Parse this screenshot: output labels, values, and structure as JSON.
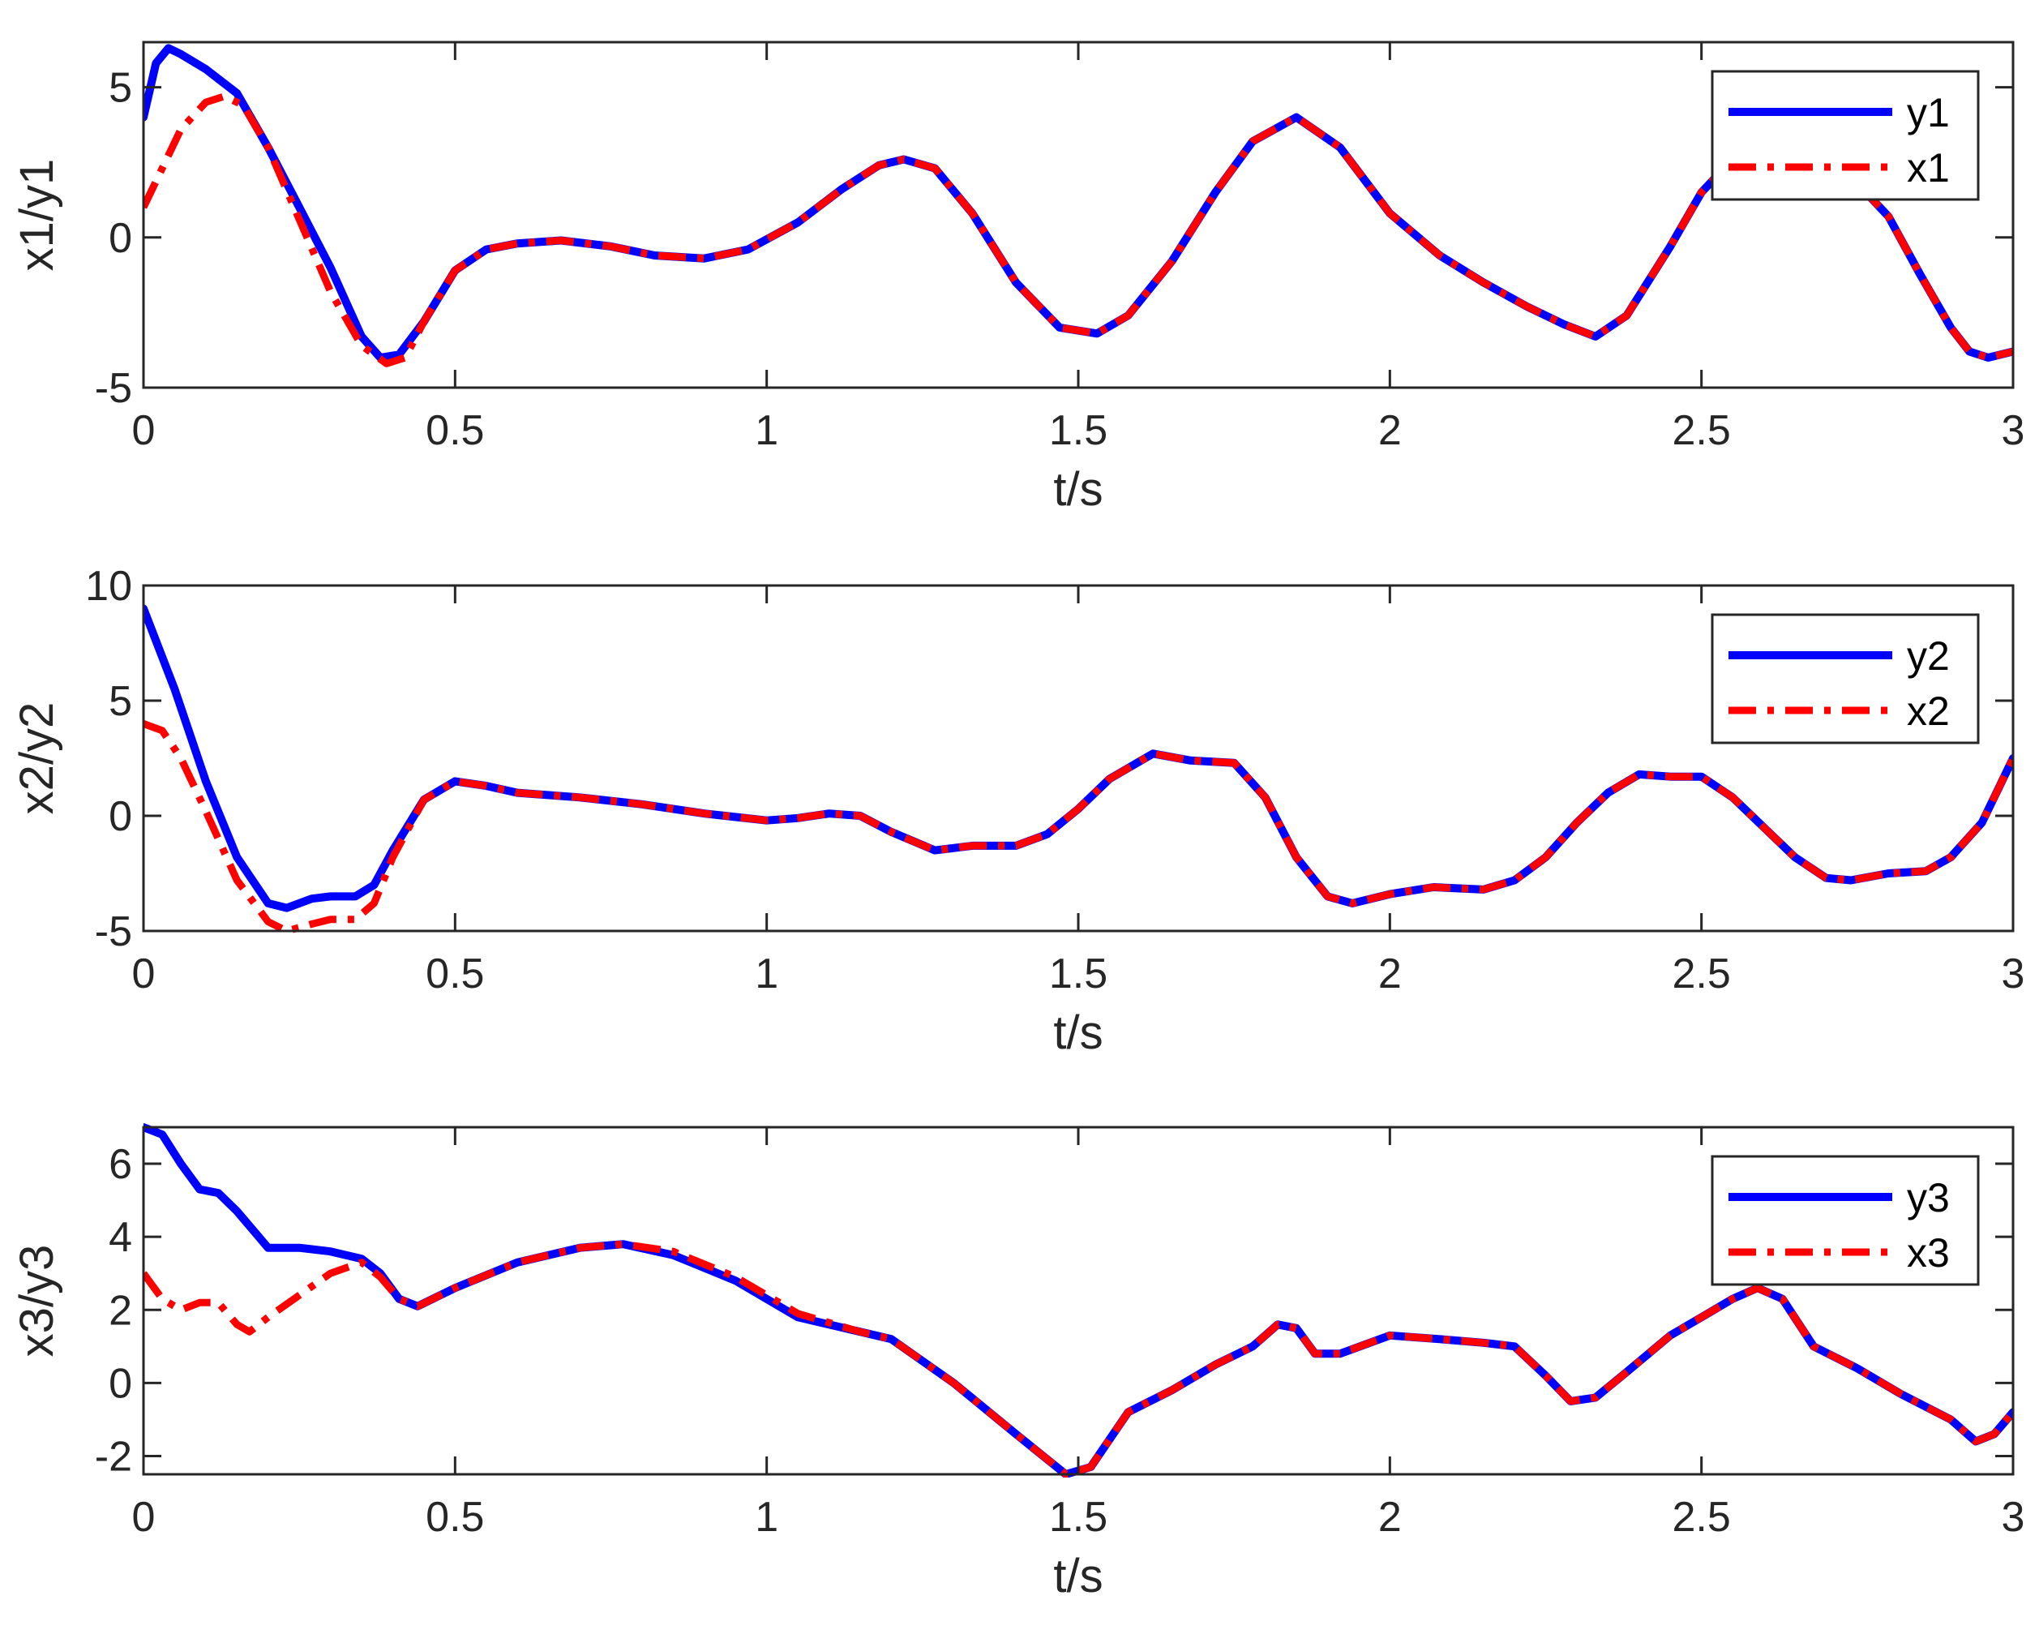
{
  "chart_data": [
    {
      "type": "line",
      "xlabel": "t/s",
      "ylabel": "x1/y1",
      "xlim": [
        0,
        3
      ],
      "ylim": [
        -5,
        6.5
      ],
      "xticks": [
        0,
        0.5,
        1,
        1.5,
        2,
        2.5,
        3
      ],
      "xtick_labels": [
        "0",
        "0.5",
        "1",
        "1.5",
        "2",
        "2.5",
        "3"
      ],
      "yticks": [
        -5,
        0,
        5
      ],
      "ytick_labels": [
        "-5",
        "0",
        "5"
      ],
      "grid": false,
      "legend": "top-right",
      "series": [
        {
          "name": "y1",
          "color": "#0000ff",
          "style": "solid",
          "x": [
            0,
            0.02,
            0.04,
            0.06,
            0.1,
            0.15,
            0.2,
            0.25,
            0.3,
            0.35,
            0.38,
            0.41,
            0.45,
            0.5,
            0.55,
            0.6,
            0.67,
            0.75,
            0.82,
            0.9,
            0.97,
            1.05,
            1.12,
            1.18,
            1.22,
            1.27,
            1.33,
            1.4,
            1.47,
            1.53,
            1.58,
            1.65,
            1.72,
            1.78,
            1.85,
            1.92,
            2.0,
            2.08,
            2.15,
            2.22,
            2.28,
            2.33,
            2.38,
            2.45,
            2.5,
            2.55,
            2.6,
            2.65,
            2.7,
            2.75,
            2.8,
            2.85,
            2.9,
            2.93,
            2.96,
            3.0
          ],
          "y": [
            4.0,
            5.8,
            6.3,
            6.1,
            5.6,
            4.8,
            3.0,
            1.0,
            -1.0,
            -3.3,
            -4.0,
            -3.9,
            -2.8,
            -1.1,
            -0.4,
            -0.2,
            -0.1,
            -0.3,
            -0.6,
            -0.7,
            -0.4,
            0.5,
            1.6,
            2.4,
            2.6,
            2.3,
            0.8,
            -1.5,
            -3.0,
            -3.2,
            -2.6,
            -0.8,
            1.5,
            3.2,
            4.0,
            3.0,
            0.8,
            -0.6,
            -1.5,
            -2.3,
            -2.9,
            -3.3,
            -2.6,
            -0.3,
            1.5,
            2.6,
            3.0,
            2.9,
            2.4,
            1.8,
            0.7,
            -1.2,
            -3.0,
            -3.8,
            -4.0,
            -3.8
          ]
        },
        {
          "name": "x1",
          "color": "#ff0000",
          "style": "dash-dot",
          "x": [
            0,
            0.03,
            0.06,
            0.1,
            0.13,
            0.16,
            0.2,
            0.25,
            0.3,
            0.35,
            0.39,
            0.42,
            0.45,
            0.5,
            0.55,
            0.6,
            0.67,
            0.75,
            0.82,
            0.9,
            0.97,
            1.05,
            1.12,
            1.18,
            1.22,
            1.27,
            1.33,
            1.4,
            1.47,
            1.53,
            1.58,
            1.65,
            1.72,
            1.78,
            1.85,
            1.92,
            2.0,
            2.08,
            2.15,
            2.22,
            2.28,
            2.33,
            2.38,
            2.45,
            2.5,
            2.55,
            2.6,
            2.65,
            2.7,
            2.75,
            2.8,
            2.85,
            2.9,
            2.93,
            2.96,
            3.0
          ],
          "y": [
            1.0,
            2.3,
            3.6,
            4.5,
            4.7,
            4.4,
            3.0,
            0.6,
            -1.8,
            -3.6,
            -4.2,
            -4.0,
            -2.8,
            -1.1,
            -0.4,
            -0.2,
            -0.1,
            -0.3,
            -0.6,
            -0.7,
            -0.4,
            0.5,
            1.6,
            2.4,
            2.6,
            2.3,
            0.8,
            -1.5,
            -3.0,
            -3.2,
            -2.6,
            -0.8,
            1.5,
            3.2,
            4.0,
            3.0,
            0.8,
            -0.6,
            -1.5,
            -2.3,
            -2.9,
            -3.3,
            -2.6,
            -0.3,
            1.5,
            2.6,
            3.0,
            2.9,
            2.4,
            1.8,
            0.7,
            -1.2,
            -3.0,
            -3.8,
            -4.0,
            -3.8
          ]
        }
      ]
    },
    {
      "type": "line",
      "xlabel": "t/s",
      "ylabel": "x2/y2",
      "xlim": [
        0,
        3
      ],
      "ylim": [
        -5,
        10
      ],
      "xticks": [
        0,
        0.5,
        1,
        1.5,
        2,
        2.5,
        3
      ],
      "xtick_labels": [
        "0",
        "0.5",
        "1",
        "1.5",
        "2",
        "2.5",
        "3"
      ],
      "yticks": [
        -5,
        0,
        5,
        10
      ],
      "ytick_labels": [
        "-5",
        "0",
        "5",
        "10"
      ],
      "grid": false,
      "legend": "top-right",
      "series": [
        {
          "name": "y2",
          "color": "#0000ff",
          "style": "solid",
          "x": [
            0,
            0.05,
            0.1,
            0.15,
            0.2,
            0.23,
            0.27,
            0.3,
            0.34,
            0.37,
            0.4,
            0.45,
            0.5,
            0.55,
            0.6,
            0.7,
            0.8,
            0.9,
            1.0,
            1.05,
            1.1,
            1.15,
            1.2,
            1.27,
            1.33,
            1.4,
            1.45,
            1.5,
            1.55,
            1.62,
            1.68,
            1.75,
            1.8,
            1.85,
            1.9,
            1.94,
            2.0,
            2.07,
            2.15,
            2.2,
            2.25,
            2.3,
            2.35,
            2.4,
            2.45,
            2.5,
            2.55,
            2.6,
            2.65,
            2.7,
            2.74,
            2.8,
            2.86,
            2.9,
            2.95,
            3.0
          ],
          "y": [
            9.0,
            5.5,
            1.5,
            -1.8,
            -3.8,
            -4.0,
            -3.6,
            -3.5,
            -3.5,
            -3.0,
            -1.5,
            0.7,
            1.5,
            1.3,
            1.0,
            0.8,
            0.5,
            0.1,
            -0.2,
            -0.1,
            0.1,
            0.0,
            -0.7,
            -1.5,
            -1.3,
            -1.3,
            -0.8,
            0.3,
            1.6,
            2.7,
            2.4,
            2.3,
            0.8,
            -1.8,
            -3.5,
            -3.8,
            -3.4,
            -3.1,
            -3.2,
            -2.8,
            -1.8,
            -0.3,
            1.0,
            1.8,
            1.7,
            1.7,
            0.8,
            -0.5,
            -1.8,
            -2.7,
            -2.8,
            -2.5,
            -2.4,
            -1.8,
            -0.3,
            2.5
          ]
        },
        {
          "name": "x2",
          "color": "#ff0000",
          "style": "dash-dot",
          "x": [
            0,
            0.03,
            0.06,
            0.1,
            0.15,
            0.2,
            0.23,
            0.27,
            0.3,
            0.34,
            0.37,
            0.4,
            0.45,
            0.5,
            0.55,
            0.6,
            0.7,
            0.8,
            0.9,
            1.0,
            1.05,
            1.1,
            1.15,
            1.2,
            1.27,
            1.33,
            1.4,
            1.45,
            1.5,
            1.55,
            1.62,
            1.68,
            1.75,
            1.8,
            1.85,
            1.9,
            1.94,
            2.0,
            2.07,
            2.15,
            2.2,
            2.25,
            2.3,
            2.35,
            2.4,
            2.45,
            2.5,
            2.55,
            2.6,
            2.65,
            2.7,
            2.74,
            2.8,
            2.86,
            2.9,
            2.95,
            3.0
          ],
          "y": [
            4.0,
            3.7,
            2.5,
            0.2,
            -2.8,
            -4.6,
            -5.0,
            -4.7,
            -4.5,
            -4.5,
            -3.8,
            -1.8,
            0.7,
            1.5,
            1.3,
            1.0,
            0.8,
            0.5,
            0.1,
            -0.2,
            -0.1,
            0.1,
            0.0,
            -0.7,
            -1.5,
            -1.3,
            -1.3,
            -0.8,
            0.3,
            1.6,
            2.7,
            2.4,
            2.3,
            0.8,
            -1.8,
            -3.5,
            -3.8,
            -3.4,
            -3.1,
            -3.2,
            -2.8,
            -1.8,
            -0.3,
            1.0,
            1.8,
            1.7,
            1.7,
            0.8,
            -0.5,
            -1.8,
            -2.7,
            -2.8,
            -2.5,
            -2.4,
            -1.8,
            -0.3,
            2.5
          ]
        }
      ]
    },
    {
      "type": "line",
      "xlabel": "t/s",
      "ylabel": "x3/y3",
      "xlim": [
        0,
        3
      ],
      "ylim": [
        -2.5,
        7
      ],
      "xticks": [
        0,
        0.5,
        1,
        1.5,
        2,
        2.5,
        3
      ],
      "xtick_labels": [
        "0",
        "0.5",
        "1",
        "1.5",
        "2",
        "2.5",
        "3"
      ],
      "yticks": [
        -2,
        0,
        2,
        4,
        6
      ],
      "ytick_labels": [
        "-2",
        "0",
        "2",
        "4",
        "6"
      ],
      "grid": false,
      "legend": "top-right",
      "series": [
        {
          "name": "y3",
          "color": "#0000ff",
          "style": "solid",
          "x": [
            0,
            0.03,
            0.06,
            0.09,
            0.12,
            0.15,
            0.2,
            0.25,
            0.3,
            0.35,
            0.38,
            0.41,
            0.44,
            0.5,
            0.6,
            0.7,
            0.77,
            0.85,
            0.95,
            1.05,
            1.15,
            1.2,
            1.3,
            1.4,
            1.48,
            1.52,
            1.58,
            1.65,
            1.72,
            1.78,
            1.82,
            1.85,
            1.88,
            1.92,
            2.0,
            2.08,
            2.15,
            2.2,
            2.25,
            2.29,
            2.33,
            2.38,
            2.45,
            2.5,
            2.55,
            2.59,
            2.63,
            2.68,
            2.75,
            2.82,
            2.9,
            2.94,
            2.97,
            3.0
          ],
          "y": [
            7.0,
            6.8,
            6.0,
            5.3,
            5.2,
            4.7,
            3.7,
            3.7,
            3.6,
            3.4,
            3.0,
            2.3,
            2.1,
            2.6,
            3.3,
            3.7,
            3.8,
            3.5,
            2.8,
            1.8,
            1.4,
            1.2,
            0.0,
            -1.4,
            -2.5,
            -2.3,
            -0.8,
            -0.2,
            0.5,
            1.0,
            1.6,
            1.5,
            0.8,
            0.8,
            1.3,
            1.2,
            1.1,
            1.0,
            0.2,
            -0.5,
            -0.4,
            0.3,
            1.3,
            1.8,
            2.3,
            2.6,
            2.3,
            1.0,
            0.4,
            -0.3,
            -1.0,
            -1.6,
            -1.4,
            -0.8
          ]
        },
        {
          "name": "x3",
          "color": "#ff0000",
          "style": "dash-dot",
          "x": [
            0,
            0.03,
            0.06,
            0.09,
            0.12,
            0.15,
            0.17,
            0.2,
            0.25,
            0.3,
            0.35,
            0.38,
            0.41,
            0.44,
            0.5,
            0.6,
            0.7,
            0.77,
            0.85,
            0.95,
            1.05,
            1.15,
            1.2,
            1.3,
            1.4,
            1.48,
            1.52,
            1.58,
            1.65,
            1.72,
            1.78,
            1.82,
            1.85,
            1.88,
            1.92,
            2.0,
            2.08,
            2.15,
            2.2,
            2.25,
            2.29,
            2.33,
            2.38,
            2.45,
            2.5,
            2.55,
            2.59,
            2.63,
            2.68,
            2.75,
            2.82,
            2.9,
            2.94,
            2.97,
            3.0
          ],
          "y": [
            3.0,
            2.3,
            2.0,
            2.2,
            2.2,
            1.6,
            1.4,
            1.8,
            2.4,
            3.0,
            3.3,
            2.9,
            2.3,
            2.1,
            2.6,
            3.3,
            3.7,
            3.8,
            3.6,
            2.9,
            1.9,
            1.4,
            1.2,
            0.0,
            -1.4,
            -2.5,
            -2.3,
            -0.8,
            -0.2,
            0.5,
            1.0,
            1.6,
            1.5,
            0.8,
            0.8,
            1.3,
            1.2,
            1.1,
            1.0,
            0.2,
            -0.5,
            -0.4,
            0.3,
            1.3,
            1.8,
            2.3,
            2.6,
            2.3,
            1.0,
            0.4,
            -0.3,
            -1.0,
            -1.6,
            -1.4,
            -0.8
          ]
        }
      ]
    }
  ]
}
